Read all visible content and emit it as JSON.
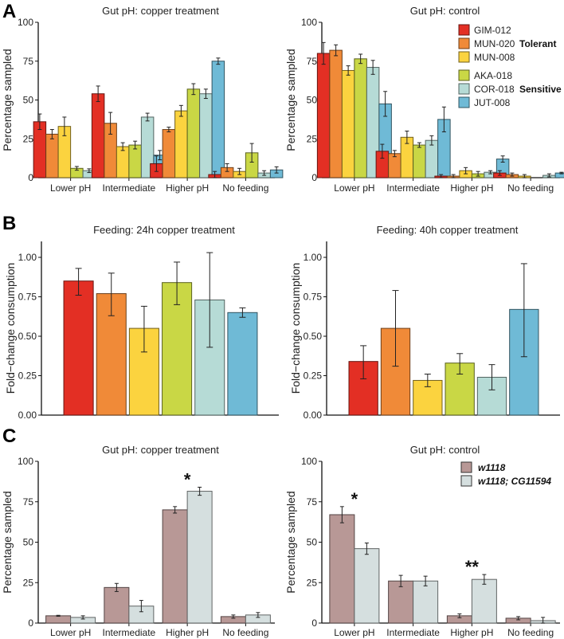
{
  "figure": {
    "panel_letters": [
      "A",
      "B",
      "C"
    ]
  },
  "colors": {
    "GIM-012": "#e32f24",
    "MUN-020": "#f08a38",
    "MUN-008": "#fbd33f",
    "AKA-018": "#c9d745",
    "COR-018": "#b6dbd6",
    "JUT-008": "#6fbad6",
    "w1118": "#b89896",
    "w1118; CG11594": "#d5dfdf"
  },
  "chart_data": [
    {
      "id": "A-left",
      "panel": "A",
      "type": "bar",
      "title": "Gut pH: copper treatment",
      "xlabel": "",
      "ylabel": "Percentage sampled",
      "ylim": [
        0,
        100
      ],
      "yticks": [
        "0",
        "25",
        "50",
        "75",
        "100"
      ],
      "categories": [
        "Lower pH",
        "Intermediate",
        "Higher pH",
        "No feeding"
      ],
      "series": [
        {
          "name": "GIM-012",
          "values": [
            36,
            54,
            9,
            2
          ],
          "errors": [
            5,
            5,
            5,
            2
          ]
        },
        {
          "name": "MUN-020",
          "values": [
            28,
            35,
            31,
            6.5
          ],
          "errors": [
            3,
            7,
            1.5,
            2.5
          ]
        },
        {
          "name": "MUN-008",
          "values": [
            33,
            20,
            43,
            4
          ],
          "errors": [
            6,
            2.5,
            3.5,
            2
          ]
        },
        {
          "name": "AKA-018",
          "values": [
            6,
            21,
            57,
            16
          ],
          "errors": [
            1.2,
            2.5,
            3.5,
            6
          ]
        },
        {
          "name": "COR-018",
          "values": [
            4.5,
            39,
            54,
            3
          ],
          "errors": [
            1.2,
            2.5,
            3,
            1.5
          ]
        },
        {
          "name": "JUT-008",
          "values": [
            6.5,
            14.5,
            75,
            5
          ],
          "errors": [
            1,
            3,
            2,
            2
          ]
        }
      ],
      "legend": "none"
    },
    {
      "id": "A-right",
      "panel": "A",
      "type": "bar",
      "title": "Gut pH: control",
      "xlabel": "",
      "ylabel": "Percentage sampled",
      "ylim": [
        0,
        100
      ],
      "yticks": [
        "0",
        "25",
        "50",
        "75",
        "100"
      ],
      "categories": [
        "Lower pH",
        "Intermediate",
        "Higher pH",
        "No feeding"
      ],
      "series": [
        {
          "name": "GIM-012",
          "values": [
            80,
            17,
            1,
            3
          ],
          "errors": [
            7,
            4.5,
            1,
            1.5
          ]
        },
        {
          "name": "MUN-020",
          "values": [
            82,
            15.5,
            1,
            2
          ],
          "errors": [
            3.5,
            2,
            1,
            1
          ]
        },
        {
          "name": "MUN-008",
          "values": [
            69,
            26,
            4.5,
            1
          ],
          "errors": [
            3,
            4,
            2,
            1
          ]
        },
        {
          "name": "AKA-018",
          "values": [
            76.5,
            21,
            2.5,
            0
          ],
          "errors": [
            3,
            1.5,
            1.5,
            0
          ]
        },
        {
          "name": "COR-018",
          "values": [
            71,
            24,
            3.5,
            1.5
          ],
          "errors": [
            4.5,
            3,
            1,
            1
          ]
        },
        {
          "name": "JUT-008",
          "values": [
            47.5,
            37.5,
            12,
            3
          ],
          "errors": [
            8,
            8,
            2,
            0.5
          ]
        }
      ],
      "legend": "top-right",
      "legend_groups": [
        {
          "label": "Tolerant",
          "items": [
            "GIM-012",
            "MUN-020",
            "MUN-008"
          ]
        },
        {
          "label": "Sensitive",
          "items": [
            "AKA-018",
            "COR-018",
            "JUT-008"
          ]
        }
      ]
    },
    {
      "id": "B-left",
      "panel": "B",
      "type": "bar",
      "title": "Feeding: 24h copper treatment",
      "xlabel": "",
      "ylabel": "Fold−change consumption",
      "ylim": [
        0,
        1.1
      ],
      "yticks": [
        "0.00",
        "0.25",
        "0.50",
        "0.75",
        "1.00"
      ],
      "categories": [
        "GIM-012",
        "MUN-020",
        "MUN-008",
        "AKA-018",
        "COR-018",
        "JUT-008"
      ],
      "values": [
        0.85,
        0.77,
        0.55,
        0.84,
        0.73,
        0.65
      ],
      "errors_low": [
        0.76,
        0.63,
        0.4,
        0.7,
        0.43,
        0.62
      ],
      "errors_high": [
        0.93,
        0.9,
        0.69,
        0.97,
        1.03,
        0.68
      ],
      "legend": "none"
    },
    {
      "id": "B-right",
      "panel": "B",
      "type": "bar",
      "title": "Feeding: 40h copper treatment",
      "xlabel": "",
      "ylabel": "Fold−change consumption",
      "ylim": [
        0,
        1.1
      ],
      "yticks": [
        "0.00",
        "0.25",
        "0.50",
        "0.75",
        "1.00"
      ],
      "categories": [
        "GIM-012",
        "MUN-020",
        "MUN-008",
        "AKA-018",
        "COR-018",
        "JUT-008"
      ],
      "values": [
        0.34,
        0.55,
        0.22,
        0.33,
        0.24,
        0.67
      ],
      "errors_low": [
        0.23,
        0.31,
        0.18,
        0.26,
        0.16,
        0.37
      ],
      "errors_high": [
        0.44,
        0.79,
        0.26,
        0.39,
        0.32,
        0.96
      ],
      "legend": "none"
    },
    {
      "id": "C-left",
      "panel": "C",
      "type": "bar",
      "title": "Gut pH: copper treatment",
      "xlabel": "",
      "ylabel": "Percentage sampled",
      "ylim": [
        0,
        100
      ],
      "yticks": [
        "0",
        "25",
        "50",
        "75",
        "100"
      ],
      "categories": [
        "Lower pH",
        "Intermediate",
        "Higher pH",
        "No feeding"
      ],
      "series": [
        {
          "name": "w1118",
          "values": [
            4.5,
            22,
            70,
            4
          ],
          "errors": [
            0.3,
            2.5,
            2,
            1
          ]
        },
        {
          "name": "w1118; CG11594",
          "values": [
            3.5,
            10.5,
            81.5,
            5
          ],
          "errors": [
            1,
            3.5,
            2.5,
            1.5
          ]
        }
      ],
      "annotations": [
        {
          "category": "Higher pH",
          "text": "*"
        }
      ],
      "legend": "none"
    },
    {
      "id": "C-right",
      "panel": "C",
      "type": "bar",
      "title": "Gut pH: control",
      "xlabel": "",
      "ylabel": "Percentage sampled",
      "ylim": [
        0,
        100
      ],
      "yticks": [
        "0",
        "25",
        "50",
        "75",
        "100"
      ],
      "categories": [
        "Lower pH",
        "Intermediate",
        "Higher pH",
        "No feeding"
      ],
      "series": [
        {
          "name": "w1118",
          "values": [
            67,
            26,
            4.5,
            3
          ],
          "errors": [
            5,
            3.5,
            1.2,
            1
          ]
        },
        {
          "name": "w1118; CG11594",
          "values": [
            46,
            26,
            27,
            1.5
          ],
          "errors": [
            3.5,
            3,
            3,
            2
          ]
        }
      ],
      "annotations": [
        {
          "category": "Lower pH",
          "text": "*"
        },
        {
          "category": "Higher pH",
          "text": "**"
        }
      ],
      "legend": "top-right",
      "legend_items": [
        {
          "name": "w1118",
          "label_main": "w1118",
          "label_suffix": ""
        },
        {
          "name": "w1118; CG11594",
          "label_main": "w1118",
          "label_suffix": "; CG11594"
        }
      ]
    }
  ]
}
